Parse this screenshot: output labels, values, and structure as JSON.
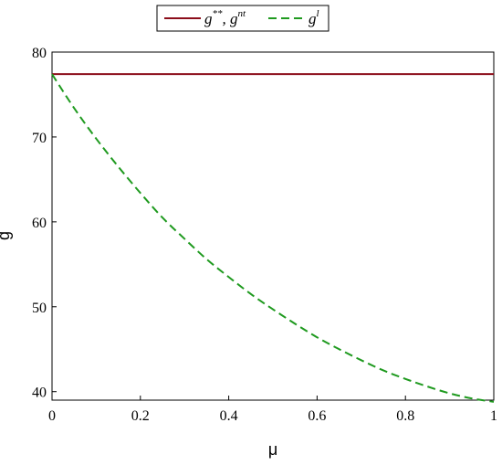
{
  "chart_data": {
    "type": "line",
    "title": "",
    "xlabel": "μ",
    "ylabel": "g",
    "xlim": [
      0,
      1
    ],
    "ylim": [
      39,
      80
    ],
    "xticks": [
      0,
      0.2,
      0.4,
      0.6,
      0.8,
      1
    ],
    "xtick_labels": [
      "0",
      "0.2",
      "0.4",
      "0.6",
      "0.8",
      "1"
    ],
    "yticks": [
      40,
      50,
      60,
      70,
      80
    ],
    "ytick_labels": [
      "40",
      "50",
      "60",
      "70",
      "80"
    ],
    "grid": false,
    "legend_position": "top-center",
    "series": [
      {
        "name": "g**, g^nt",
        "legend": {
          "base1": "g",
          "sup1": "**",
          "sep": ", ",
          "base2": "g",
          "sup2": "nt"
        },
        "color": "#8b0d1a",
        "dash": "solid",
        "x": [
          0,
          0.1,
          0.2,
          0.3,
          0.4,
          0.5,
          0.6,
          0.7,
          0.8,
          0.9,
          1
        ],
        "y": [
          77.4,
          77.4,
          77.4,
          77.4,
          77.4,
          77.4,
          77.4,
          77.4,
          77.4,
          77.4,
          77.4
        ]
      },
      {
        "name": "g^l",
        "legend": {
          "base1": "g",
          "sup1": "l"
        },
        "color": "#1f9a1f",
        "dash": "dashed",
        "x": [
          0,
          0.05,
          0.1,
          0.15,
          0.2,
          0.25,
          0.3,
          0.35,
          0.4,
          0.45,
          0.5,
          0.55,
          0.6,
          0.65,
          0.7,
          0.75,
          0.8,
          0.85,
          0.9,
          0.95,
          1
        ],
        "y": [
          77.4,
          73.4,
          69.8,
          66.5,
          63.4,
          60.5,
          58.0,
          55.6,
          53.5,
          51.5,
          49.7,
          48.0,
          46.4,
          45.0,
          43.7,
          42.5,
          41.5,
          40.6,
          39.8,
          39.2,
          38.8
        ]
      }
    ]
  }
}
